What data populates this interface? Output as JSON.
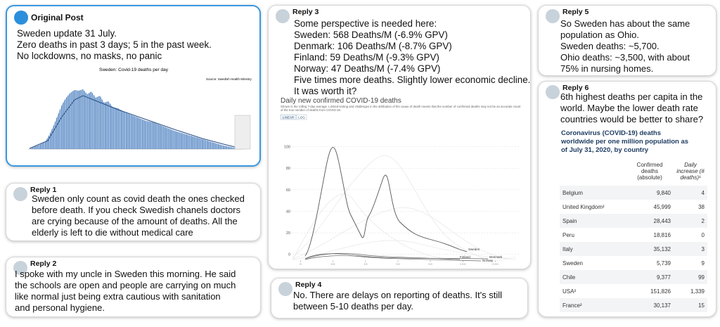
{
  "original_post": {
    "label": "Original Post",
    "lines": [
      "Sweden update 31 July.",
      "Zero deaths in past 3 days; 5 in the past week.",
      "No lockdowns, no masks, no panic"
    ],
    "image": {
      "title": "Sweden: Covid-19 deaths per day",
      "source": "Source: Swedish Health Ministry"
    }
  },
  "replies": [
    {
      "label": "Reply 1",
      "lines": [
        "Sweden only count as covid death the ones checked",
        "before death. If you check Swedish chanels doctors",
        "are crying because of the amount of deaths. All the",
        "elderly is left to die without medical care"
      ]
    },
    {
      "label": "Reply 2",
      "lines": [
        "I spoke with my uncle in Sweden this morning. He said",
        "the schools are open and people are carrying on much",
        "like normal just being extra cautious with sanitation",
        "and personal hygiene."
      ]
    },
    {
      "label": "Reply 3",
      "lines": [
        "Some perspective is needed here:",
        "Sweden: 568 Deaths/M (-6.9% GPV)",
        "Denmark: 106 Deaths/M (-8.7% GPV)",
        "Finland: 59 Deaths/M (-9.3% GPV)",
        "Norway: 47 Deaths/M (-7.4% GPV)",
        "Five times more deaths. Slightly lower economic decline.",
        "It was worth it?"
      ],
      "image": {
        "title": "Daily new confirmed COVID-19 deaths",
        "subtitle": "Shown is the rolling 7-day average. Limited testing and challenges in the attribution of the cause of death means that the number of confirmed deaths may not be an accurate count of the true number of deaths from COVID-19.",
        "buttons": [
          "LINEAR",
          "LOG"
        ],
        "xlim": [
          -5,
          135
        ],
        "ylim": [
          -8,
          118
        ],
        "xticks": [
          0,
          20,
          40,
          60,
          80,
          100,
          120
        ],
        "yticks": [
          0,
          20,
          40,
          60,
          80,
          100
        ],
        "xlabel": "Days since 5 daily new deaths first reported",
        "line_labels": [
          "Sweden",
          "Finland",
          "Norway",
          "Denmark"
        ]
      }
    },
    {
      "label": "Reply 4",
      "lines": [
        "No. There are delays on reporting of deaths. It's still",
        "between 5-10 deaths per day."
      ]
    },
    {
      "label": "Reply 5",
      "lines": [
        "So Sweden has about the same",
        "population as Ohio.",
        "Sweden deaths: ~5,700.",
        "Ohio deaths: ~3,500, with about",
        "75% in nursing homes."
      ]
    },
    {
      "label": "Reply 6",
      "lines": [
        "6th highest deaths per capita in the",
        "world.  Maybe the lower death rate",
        "countries would be better to share?"
      ],
      "table": {
        "title": "Coronavirus (COVID-19) deaths worldwide per one million population as of July 31, 2020, by country",
        "headers": [
          "Confirmed deaths (absolute)",
          "Daily increase (# deaths)¹"
        ],
        "rows": [
          [
            "Belgium",
            "9,840",
            "4"
          ],
          [
            "United Kingdom²",
            "45,999",
            "38"
          ],
          [
            "Spain",
            "28,443",
            "2"
          ],
          [
            "Peru",
            "18,816",
            "0"
          ],
          [
            "Italy",
            "35,132",
            "3"
          ],
          [
            "Sweden",
            "5,739",
            "9"
          ],
          [
            "Chile",
            "9,377",
            "99"
          ],
          [
            "USA²",
            "151,826",
            "1,339"
          ],
          [
            "France²",
            "30,137",
            "15"
          ]
        ]
      }
    }
  ]
}
